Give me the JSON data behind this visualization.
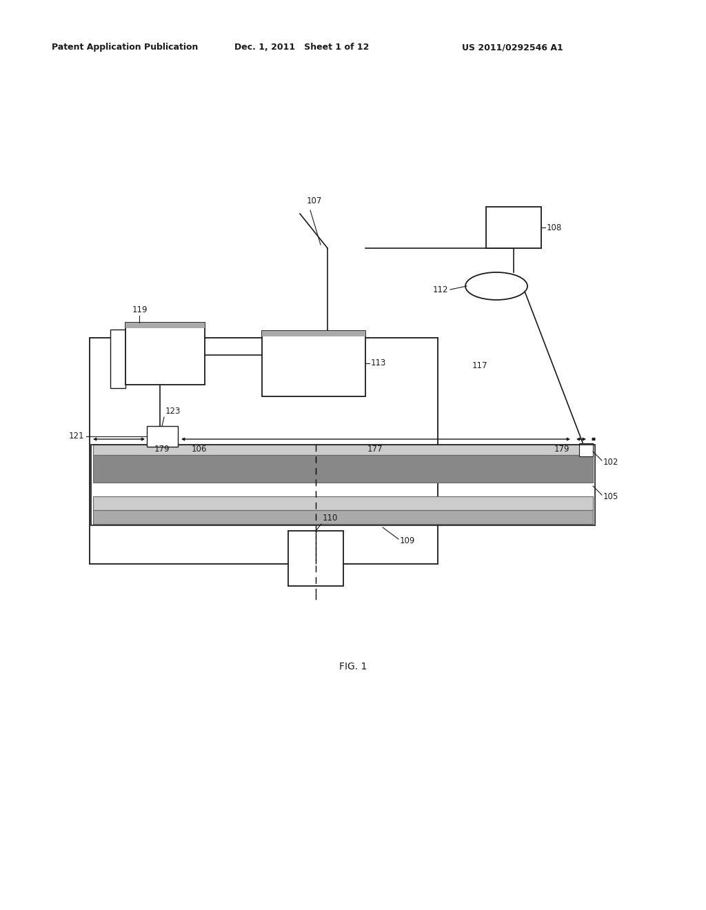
{
  "bg_color": "#ffffff",
  "header_left": "Patent Application Publication",
  "header_mid": "Dec. 1, 2011   Sheet 1 of 12",
  "header_right": "US 2011/0292546 A1",
  "fig_label": "FIG. 1",
  "line_color": "#1a1a1a",
  "text_color": "#1a1a1a",
  "gray_light": "#cccccc",
  "gray_mid": "#aaaaaa",
  "gray_dark": "#888888"
}
